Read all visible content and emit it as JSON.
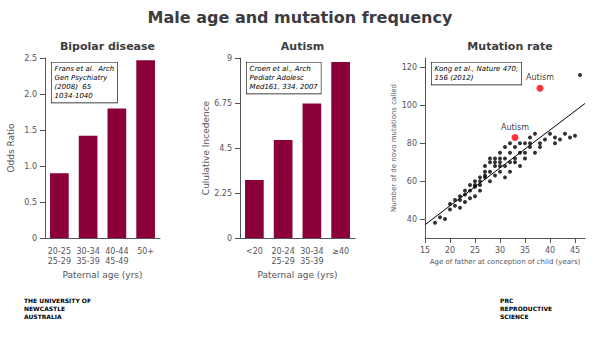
{
  "title": "Male age and mutation frequency",
  "annotations": [
    "THE UNIVERSITY OF\nNEWCASTLE\nAUSTRALIA",
    "PRC\nREPRODUCTIVE\nSCIENCE"
  ],
  "chart_data": [
    {
      "type": "bar",
      "title": "Bipolar disease",
      "xlabel": "Paternal age (yrs)",
      "ylabel": "Odds Ratio",
      "categories": [
        "20-25\n25-29",
        "30-34\n35-39",
        "40-44\n45-49",
        "50+"
      ],
      "values": [
        0.9,
        1.42,
        1.8,
        2.47
      ],
      "color": "#8B0038",
      "ylim": [
        0,
        2.5
      ],
      "yticks": [
        0,
        0.5,
        {
          "value": 1.0,
          "label": "1.0"
        },
        1.5,
        {
          "value": 2.0,
          "label": "2.0"
        },
        2.5
      ],
      "grid": false,
      "annotation": "Frans et al.  Arch\nGen Psychiatry\n(2008)  65\n1034-1040"
    },
    {
      "type": "bar",
      "title": "Autism",
      "xlabel": "Paternal age (yrs)",
      "ylabel": "Cululative Incedence",
      "categories": [
        "<20",
        "20-24\n25-29",
        "30-34\n35-39",
        "≥40"
      ],
      "values": [
        2.9,
        4.9,
        6.72,
        8.8
      ],
      "color": "#8B0038",
      "ylim": [
        0,
        9
      ],
      "yticks": [
        0,
        2.25,
        4.5,
        6.75,
        9
      ],
      "grid": false,
      "annotation": "Croen et al., Arch\nPediatr Adolesc\nMed161, 334, 2007"
    },
    {
      "type": "scatter",
      "title": "Mutation rate",
      "xlabel": "Age of father at conception of child (years)",
      "ylabel": "Number of de novo mutations called",
      "xlim": [
        15,
        47
      ],
      "xticks": [
        15,
        20,
        25,
        30,
        35,
        40,
        45
      ],
      "ylim": [
        30,
        125
      ],
      "yticks": [
        40,
        60,
        80,
        100,
        120
      ],
      "grid": false,
      "annotation": "Kong et al., Nature 470;\n156 (2012)",
      "series": [
        {
          "type": "scatter",
          "color": "black",
          "x": [
            17,
            18,
            19,
            20,
            20,
            21,
            21,
            22,
            22,
            22,
            23,
            23,
            23,
            24,
            24,
            24,
            25,
            25,
            25,
            25,
            26,
            26,
            26,
            26,
            27,
            27,
            27,
            27,
            28,
            28,
            28,
            28,
            29,
            29,
            29,
            29,
            30,
            30,
            30,
            30,
            30,
            31,
            31,
            31,
            31,
            32,
            32,
            32,
            32,
            33,
            33,
            33,
            34,
            34,
            34,
            35,
            35,
            35,
            36,
            36,
            36,
            37,
            37,
            38,
            38,
            39,
            40,
            41,
            41,
            42,
            43,
            44,
            45,
            46
          ],
          "y": [
            38,
            41,
            40,
            45,
            48,
            47,
            50,
            50,
            52,
            46,
            49,
            55,
            53,
            51,
            55,
            58,
            52,
            58,
            60,
            57,
            55,
            62,
            60,
            58,
            62,
            65,
            68,
            63,
            60,
            65,
            70,
            72,
            63,
            68,
            72,
            70,
            65,
            70,
            75,
            68,
            72,
            62,
            68,
            72,
            78,
            65,
            70,
            75,
            80,
            70,
            72,
            78,
            68,
            75,
            80,
            72,
            80,
            75,
            78,
            83,
            80,
            75,
            85,
            80,
            78,
            82,
            85,
            80,
            83,
            82,
            85,
            83,
            84,
            116
          ]
        },
        {
          "type": "line",
          "color": "black",
          "x": [
            15,
            47
          ],
          "y": [
            37,
            101
          ]
        },
        {
          "type": "scatter",
          "color": "red",
          "x": [
            33,
            38
          ],
          "y": [
            83,
            109
          ],
          "value_labels": [
            "Autism",
            "Autism"
          ]
        }
      ]
    }
  ]
}
